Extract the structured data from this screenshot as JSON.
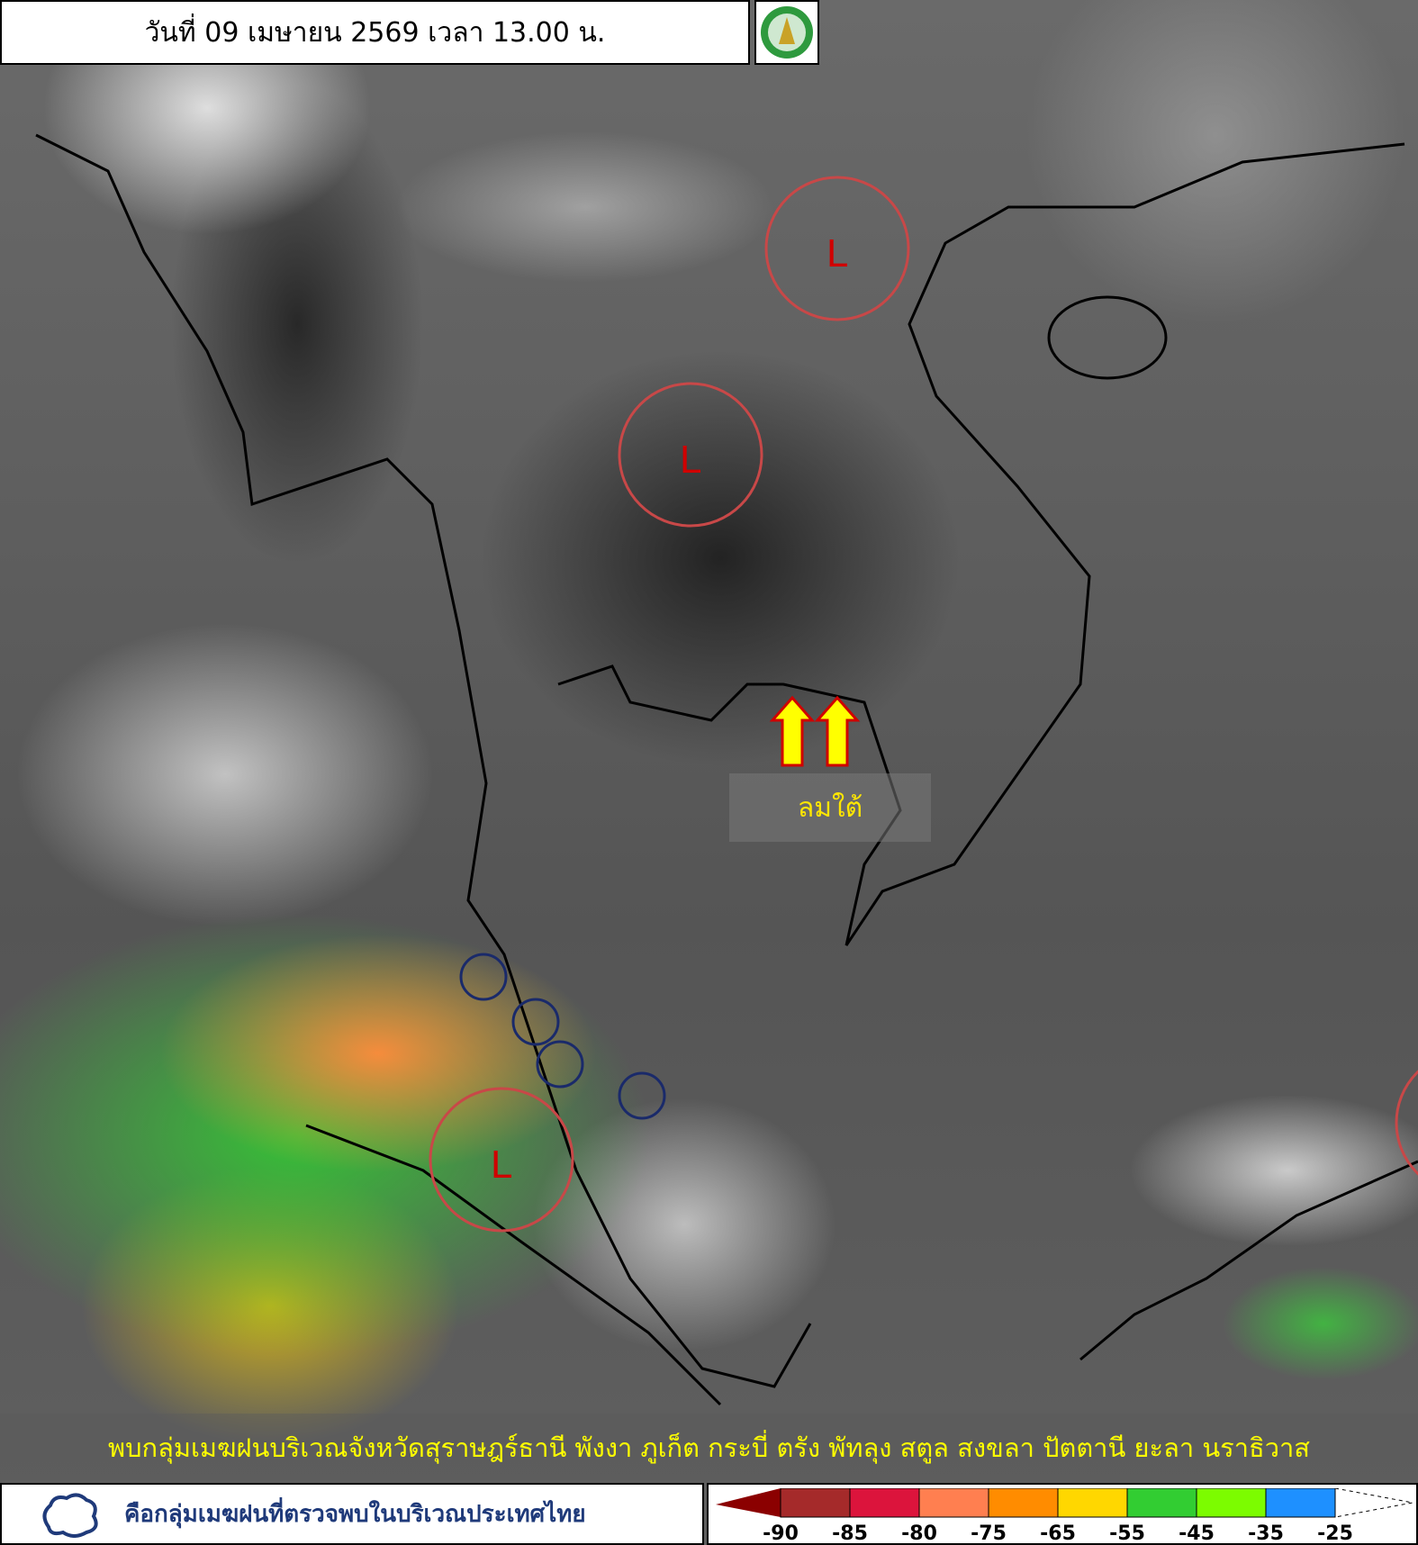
{
  "header": {
    "title": "วันที่ 09 เมษายน 2569 เวลา 13.00 น.",
    "logo": "Thai Meteorological Department logo"
  },
  "map": {
    "low_pressure_label": "L",
    "wind_label": "ลมใต้",
    "arrow_icon": "arrow-up-icon",
    "arrow_color": "#ffff00"
  },
  "caption": "พบกลุ่มเมฆฝนบริเวณจังหวัดสุราษฎร์ธานี พังงา ภูเก็ต กระบี่ ตรัง พัทลุง สตูล สงขลา ปัตตานี ยะลา นราธิวาส",
  "legend": {
    "cloud_icon": "cloud-outline-icon",
    "text": "คือกลุ่มเมฆฝนที่ตรวจพบในบริเวณประเทศไทย"
  },
  "colorbar": {
    "colors": [
      "#8b0000",
      "#a52a2a",
      "#dc143c",
      "#ff7f50",
      "#ff8c00",
      "#ffd700",
      "#32cd32",
      "#7cfc00",
      "#1e90ff"
    ],
    "ticks": [
      "-90",
      "-85",
      "-80",
      "-75",
      "-65",
      "-55",
      "-45",
      "-35",
      "-25"
    ]
  }
}
